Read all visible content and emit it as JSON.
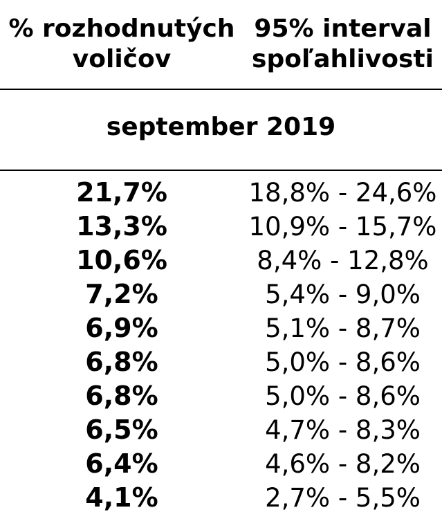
{
  "header": {
    "col_share_line1": "% rozhodnutých",
    "col_share_line2": "voličov",
    "col_ci_line1": "95% interval",
    "col_ci_line2": "spoľahlivosti"
  },
  "period": "september 2019",
  "rows": [
    {
      "share": "21,7%",
      "interval": "18,8% - 24,6%"
    },
    {
      "share": "13,3%",
      "interval": "10,9% - 15,7%"
    },
    {
      "share": "10,6%",
      "interval": "8,4% - 12,8%"
    },
    {
      "share": "7,2%",
      "interval": "5,4% - 9,0%"
    },
    {
      "share": "6,9%",
      "interval": "5,1% - 8,7%"
    },
    {
      "share": "6,8%",
      "interval": "5,0% - 8,6%"
    },
    {
      "share": "6,8%",
      "interval": "5,0% - 8,6%"
    },
    {
      "share": "6,5%",
      "interval": "4,7% - 8,3%"
    },
    {
      "share": "6,4%",
      "interval": "4,6% - 8,2%"
    },
    {
      "share": "4,1%",
      "interval": "2,7% - 5,5%"
    }
  ]
}
